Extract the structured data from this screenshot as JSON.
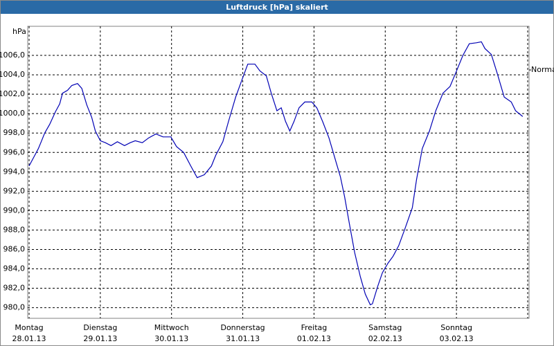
{
  "chart_data": {
    "type": "line",
    "title": "Luftdruck [hPa] skaliert",
    "y_label": "hPa",
    "x": [
      0,
      0.08,
      0.13,
      0.17,
      0.22,
      0.29,
      0.37,
      0.43,
      0.47,
      0.54,
      0.6,
      0.68,
      0.74,
      0.81,
      0.88,
      0.93,
      1.0,
      1.07,
      1.15,
      1.24,
      1.34,
      1.42,
      1.49,
      1.59,
      1.68,
      1.78,
      1.88,
      1.99,
      2.07,
      2.17,
      2.27,
      2.36,
      2.46,
      2.56,
      2.62,
      2.72,
      2.8,
      2.9,
      2.99,
      3.07,
      3.17,
      3.24,
      3.33,
      3.4,
      3.48,
      3.54,
      3.6,
      3.66,
      3.72,
      3.79,
      3.87,
      3.97,
      4.04,
      4.12,
      4.21,
      4.31,
      4.37,
      4.43,
      4.5,
      4.57,
      4.65,
      4.72,
      4.79,
      4.82,
      4.89,
      4.96,
      5.04,
      5.11,
      5.19,
      5.28,
      5.38,
      5.44,
      5.52,
      5.62,
      5.71,
      5.81,
      5.91,
      5.99,
      6.09,
      6.18,
      6.28,
      6.35,
      6.4,
      6.49,
      6.57,
      6.67,
      6.77,
      6.83,
      6.93
    ],
    "series": [
      {
        "color": "#0000b4",
        "values": [
          994.6,
          995.7,
          996.4,
          997.1,
          998.0,
          998.9,
          1000.2,
          1001.0,
          1002.1,
          1002.4,
          1002.9,
          1003.1,
          1002.6,
          1000.9,
          999.6,
          998.2,
          997.2,
          997.0,
          996.7,
          997.1,
          996.7,
          997.0,
          997.2,
          997.0,
          997.5,
          997.9,
          997.6,
          997.6,
          996.6,
          996.0,
          994.6,
          993.4,
          993.7,
          994.6,
          995.7,
          997.1,
          999.2,
          1001.7,
          1003.5,
          1005.1,
          1005.1,
          1004.4,
          1003.9,
          1002.1,
          1000.3,
          1000.6,
          999.2,
          998.2,
          999.2,
          1000.6,
          1001.2,
          1001.2,
          1000.6,
          999.2,
          997.5,
          995.0,
          993.5,
          991.4,
          988.5,
          985.7,
          983.2,
          981.4,
          980.3,
          980.4,
          982.1,
          983.6,
          984.6,
          985.3,
          986.4,
          988.2,
          990.3,
          993.2,
          996.4,
          998.2,
          1000.3,
          1002.1,
          1002.8,
          1004.2,
          1006.0,
          1007.2,
          1007.3,
          1007.4,
          1006.7,
          1006.1,
          1004.2,
          1001.7,
          1001.2,
          1000.3,
          999.7
        ]
      }
    ],
    "xlim": [
      0,
      7
    ],
    "xticks": [
      {
        "value": 0,
        "label": "Montag",
        "date": "28.01.13"
      },
      {
        "value": 1,
        "label": "Dienstag",
        "date": "29.01.13"
      },
      {
        "value": 2,
        "label": "Mittwoch",
        "date": "30.01.13"
      },
      {
        "value": 3,
        "label": "Donnerstag",
        "date": "31.01.13"
      },
      {
        "value": 4,
        "label": "Freitag",
        "date": "01.02.13"
      },
      {
        "value": 5,
        "label": "Samstag",
        "date": "02.02.13"
      },
      {
        "value": 6,
        "label": "Sonntag",
        "date": "03.02.13"
      },
      7
    ],
    "ylim": [
      978.9,
      1009.0
    ],
    "yticks": [
      {
        "value": 980,
        "label": "980,0"
      },
      {
        "value": 982,
        "label": "982,0"
      },
      {
        "value": 984,
        "label": "984,0"
      },
      {
        "value": 986,
        "label": "986,0"
      },
      {
        "value": 988,
        "label": "988,0"
      },
      {
        "value": 990,
        "label": "990,0"
      },
      {
        "value": 992,
        "label": "992,0"
      },
      {
        "value": 994,
        "label": "994,0"
      },
      {
        "value": 996,
        "label": "996,0"
      },
      {
        "value": 998,
        "label": "998,0"
      },
      {
        "value": 1000,
        "label": "1000,0"
      },
      {
        "value": 1002,
        "label": "1002,0"
      },
      {
        "value": 1004,
        "label": "1004,0"
      },
      {
        "value": 1006,
        "label": "1006,0"
      }
    ],
    "grid": true,
    "normal": {
      "label": "Normal",
      "value": 1004.5
    }
  }
}
